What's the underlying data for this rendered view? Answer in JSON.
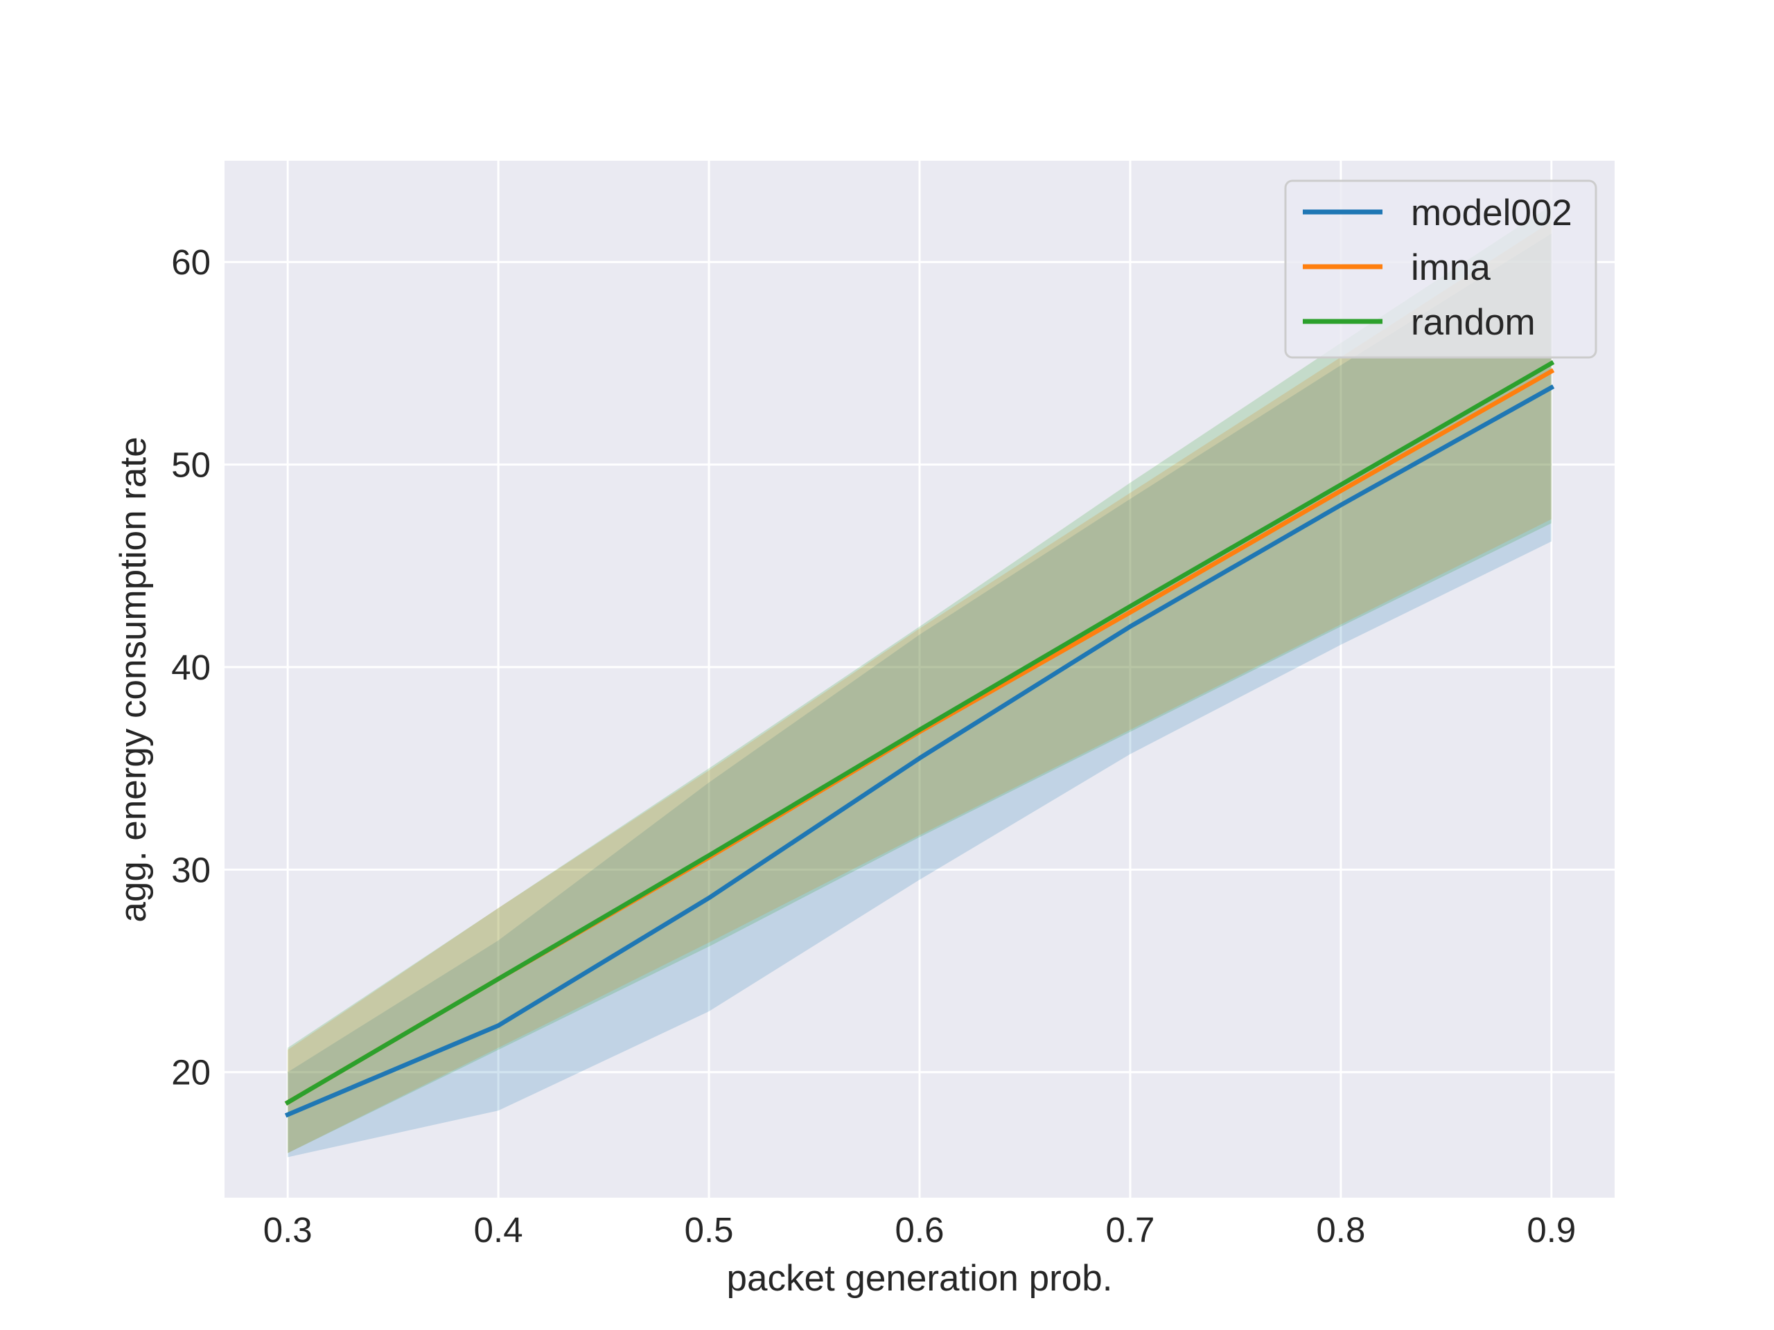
{
  "chart_data": {
    "type": "line",
    "title": "",
    "xlabel": "packet generation prob.",
    "ylabel": "agg. energy consumption rate",
    "x": [
      0.3,
      0.4,
      0.5,
      0.6,
      0.7,
      0.8,
      0.9
    ],
    "xlim": [
      0.27,
      0.93
    ],
    "ylim": [
      13.8,
      65.0
    ],
    "xticks": [
      "0.3",
      "0.4",
      "0.5",
      "0.6",
      "0.7",
      "0.8",
      "0.9"
    ],
    "yticks": [
      "20",
      "30",
      "40",
      "50",
      "60"
    ],
    "grid": true,
    "legend_position": "top-right",
    "series": [
      {
        "name": "model002",
        "color": "#1f77b4",
        "values": [
          17.9,
          22.3,
          28.6,
          35.5,
          42.0,
          48.0,
          53.8
        ],
        "band_lower": [
          15.8,
          18.1,
          23.0,
          29.5,
          35.7,
          41.1,
          46.2
        ],
        "band_upper": [
          20.0,
          26.5,
          34.3,
          41.6,
          48.3,
          54.9,
          61.4
        ]
      },
      {
        "name": "imna",
        "color": "#ff7f0e",
        "values": [
          18.5,
          24.6,
          30.6,
          36.8,
          42.7,
          48.7,
          54.6
        ],
        "band_lower": [
          16.0,
          21.2,
          26.4,
          31.7,
          36.9,
          42.1,
          47.3
        ],
        "band_upper": [
          21.1,
          28.1,
          34.9,
          41.9,
          48.6,
          55.3,
          62.0
        ]
      },
      {
        "name": "random",
        "color": "#2ca02c",
        "values": [
          18.5,
          24.6,
          30.7,
          36.9,
          43.0,
          49.0,
          55.0
        ],
        "band_lower": [
          16.0,
          21.1,
          26.2,
          31.6,
          36.8,
          42.0,
          47.1
        ],
        "band_upper": [
          21.2,
          28.1,
          35.0,
          42.0,
          49.1,
          56.0,
          62.8
        ]
      }
    ]
  }
}
